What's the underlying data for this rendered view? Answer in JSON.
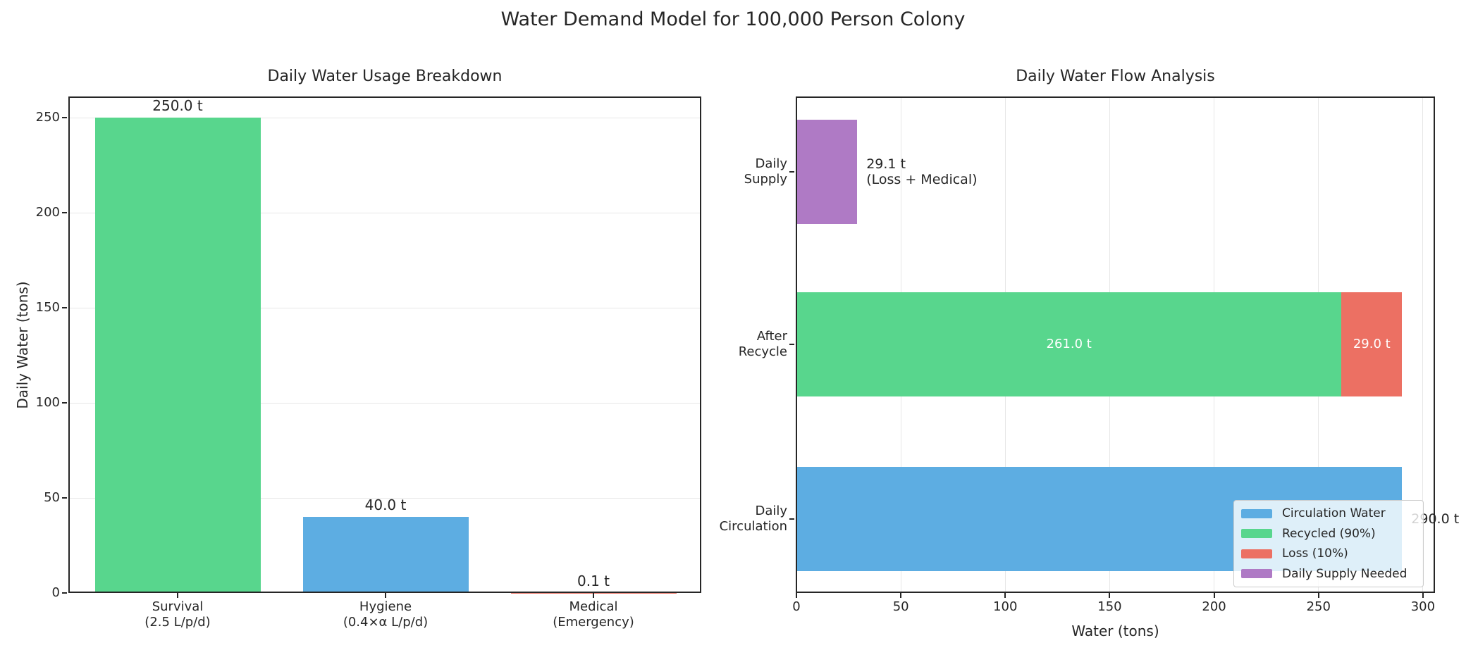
{
  "figure": {
    "title": "Water Demand Model for 100,000 Person Colony"
  },
  "chart_data": [
    {
      "type": "bar",
      "title": "Daily Water Usage Breakdown",
      "ylabel": "Daily Water (tons)",
      "categories": [
        "Survival\n(2.5 L/p/d)",
        "Hygiene\n(0.4×α L/p/d)",
        "Medical\n(Emergency)"
      ],
      "values": [
        250.0,
        40.0,
        0.1
      ],
      "bar_labels": [
        "250.0 t",
        "40.0 t",
        "0.1 t"
      ],
      "bar_colors": [
        "#58d68d",
        "#5dade2",
        "#ec7063"
      ],
      "yticks": [
        0,
        50,
        100,
        150,
        200,
        250
      ],
      "ylim": [
        0,
        261
      ],
      "grid": "horizontal gridlines"
    },
    {
      "type": "barh-stacked",
      "title": "Daily Water Flow Analysis",
      "xlabel": "Water (tons)",
      "xticks": [
        0,
        50,
        100,
        150,
        200,
        250,
        300
      ],
      "xlim": [
        0,
        306
      ],
      "grid": "vertical gridlines",
      "rows": [
        {
          "category": "Daily\nSupply",
          "outside_label": "29.1 t\n(Loss + Medical)",
          "segments": [
            {
              "name": "Daily Supply Needed",
              "value": 29.1,
              "color": "#af7ac5"
            }
          ]
        },
        {
          "category": "After\nRecycle",
          "segments": [
            {
              "name": "Recycled (90%)",
              "value": 261.0,
              "inside_label": "261.0 t",
              "color": "#58d68d"
            },
            {
              "name": "Loss (10%)",
              "value": 29.0,
              "inside_label": "29.0 t",
              "color": "#ec7063"
            }
          ]
        },
        {
          "category": "Daily\nCirculation",
          "outside_label": "290.0 t",
          "segments": [
            {
              "name": "Circulation Water",
              "value": 290.0,
              "color": "#5dade2"
            }
          ]
        }
      ],
      "legend": {
        "position": "lower right",
        "items": [
          {
            "label": "Circulation Water",
            "color": "#5dade2"
          },
          {
            "label": "Recycled (90%)",
            "color": "#58d68d"
          },
          {
            "label": "Loss (10%)",
            "color": "#ec7063"
          },
          {
            "label": "Daily Supply Needed",
            "color": "#af7ac5"
          }
        ]
      }
    }
  ]
}
